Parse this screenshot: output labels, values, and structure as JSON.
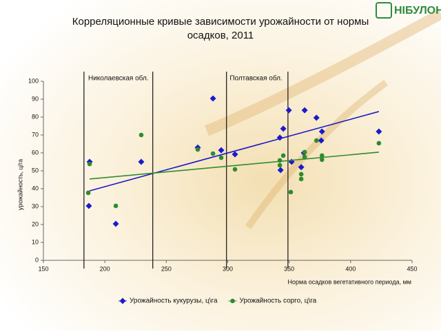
{
  "logo": "НІБУЛОН",
  "chart_data": {
    "type": "scatter",
    "title": "Корреляционные кривые зависимости урожайности от нормы осадков, 2011",
    "x_label": "Норма осадков вегетативного периода, мм",
    "y_label": "урожайность, ц/га",
    "xlim": [
      150,
      450
    ],
    "ylim": [
      0,
      100
    ],
    "xticks": [
      150,
      200,
      250,
      300,
      350,
      400,
      450
    ],
    "yticks": [
      0,
      10,
      20,
      30,
      40,
      50,
      60,
      70,
      80,
      90,
      100
    ],
    "grid": false,
    "legend": "bottom",
    "vlines": [
      183,
      239,
      299,
      349
    ],
    "region_labels": [
      {
        "label": "Николаевская обл.",
        "x": 211
      },
      {
        "label": "Полтавская обл.",
        "x": 323
      }
    ],
    "series": [
      {
        "name": "Урожайность кукурузы, ц\\га",
        "color": "#1a1acc",
        "marker": "diamond",
        "x": [
          187.6,
          187,
          208.9,
          229.6,
          275.6,
          288,
          294.7,
          305.9,
          342.4,
          345.2,
          349.7,
          343,
          352,
          359.8,
          362.6,
          362,
          372.2,
          376.7,
          376.1,
          423
        ],
        "values": [
          55,
          30.4,
          20.4,
          55,
          63,
          90.4,
          61.5,
          59.2,
          68.5,
          73.5,
          83.8,
          50.4,
          55,
          52,
          83.8,
          60,
          79.6,
          71.9,
          66.9,
          71.9
        ],
        "trend": {
          "x": [
            187.6,
            423
          ],
          "values": [
            38.8,
            83.1
          ]
        }
      },
      {
        "name": "Урожайность сорго, ц\\га",
        "color": "#2e8b2e",
        "marker": "circle",
        "x": [
          186.5,
          187.6,
          208.9,
          229.6,
          275.6,
          288,
          294.7,
          305.9,
          342.4,
          342.4,
          345.2,
          351.3,
          359.8,
          359.8,
          362.6,
          362.6,
          372.2,
          376.7,
          376.7,
          423
        ],
        "values": [
          37.7,
          53.8,
          30.4,
          70,
          61.9,
          59.6,
          57.3,
          50.8,
          55.8,
          53.1,
          58.5,
          38.1,
          48.1,
          45.4,
          60.4,
          57.7,
          66.9,
          58.5,
          56.2,
          65.4
        ],
        "trend": {
          "x": [
            187.6,
            423
          ],
          "values": [
            45.4,
            60.4
          ]
        }
      }
    ]
  }
}
